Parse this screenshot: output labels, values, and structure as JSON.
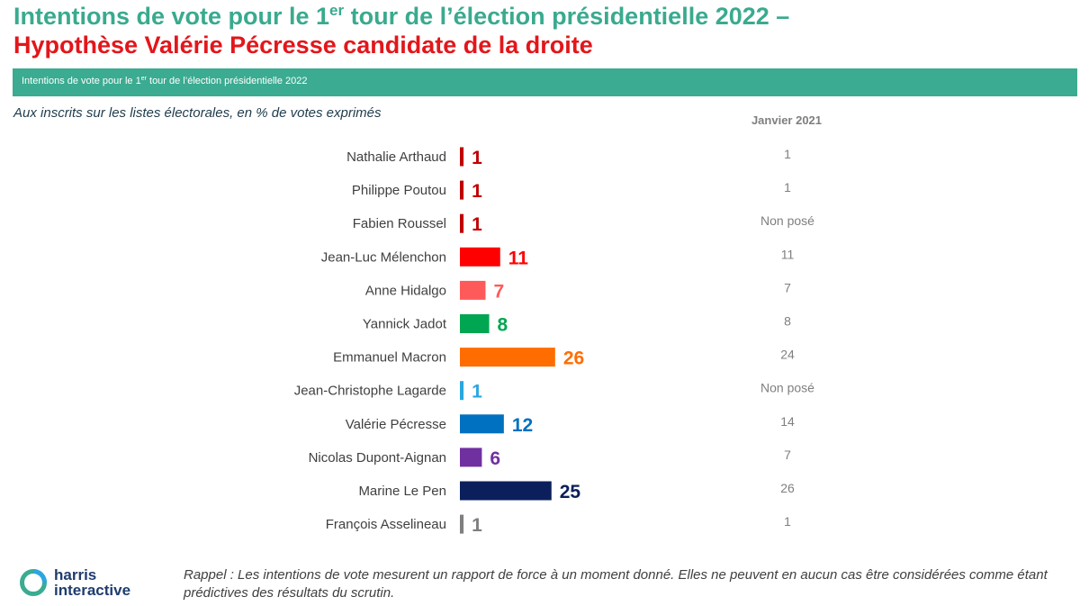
{
  "title": {
    "line1_a": "Intentions de vote pour le 1",
    "line1_sup": "er",
    "line1_b": " tour de l’élection présidentielle 2022 –",
    "line2": "Hypothèse Valérie Pécresse candidate de la droite"
  },
  "band": {
    "text_a": "Intentions de vote pour le 1",
    "text_sup": "er",
    "text_b": " tour de l’élection présidentielle 2022"
  },
  "subtitle": "Aux inscrits sur les listes électorales, en % de votes exprimés",
  "comparison_header": "Janvier 2021",
  "chart_data": {
    "type": "bar",
    "orientation": "horizontal",
    "unit": "% de votes exprimés",
    "categories": [
      "Nathalie Arthaud",
      "Philippe Poutou",
      "Fabien Roussel",
      "Jean-Luc Mélenchon",
      "Anne Hidalgo",
      "Yannick Jadot",
      "Emmanuel Macron",
      "Jean-Christophe Lagarde",
      "Valérie Pécresse",
      "Nicolas Dupont-Aignan",
      "Marine Le Pen",
      "François Asselineau"
    ],
    "values": [
      1,
      1,
      1,
      11,
      7,
      8,
      26,
      1,
      12,
      6,
      25,
      1
    ],
    "colors": [
      "#c00000",
      "#c00000",
      "#c00000",
      "#ff0000",
      "#ff5a5a",
      "#00a651",
      "#ff6d01",
      "#2aa7e0",
      "#0070c0",
      "#7030a0",
      "#0b1f5c",
      "#7f7f7f"
    ],
    "previous_label": "Janvier 2021",
    "previous_values": [
      "1",
      "1",
      "Non posé",
      "11",
      "7",
      "8",
      "24",
      "Non posé",
      "14",
      "7",
      "26",
      "1"
    ]
  },
  "logo": {
    "line1": "harris",
    "line2": "interactive"
  },
  "note": "Rappel : Les intentions de vote mesurent un rapport de force à un moment donné. Elles ne peuvent en aucun cas être considérées comme étant prédictives des résultats du scrutin."
}
